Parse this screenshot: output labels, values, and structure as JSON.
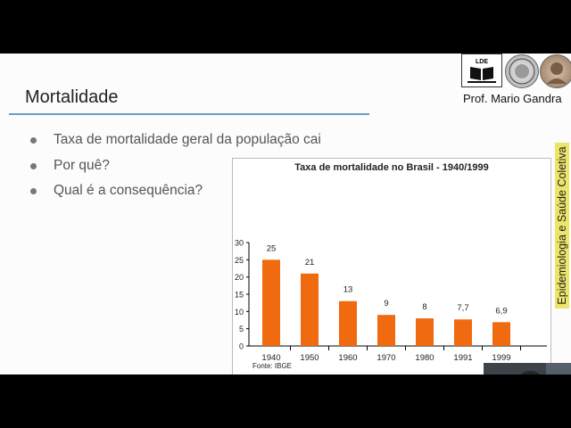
{
  "slide": {
    "title": "Mortalidade",
    "author": "Prof. Mario Gandra",
    "vertical_tag": "Epidemiologia e Saúde Coletiva",
    "logo_lde_text": "LDE",
    "bullets": [
      "Taxa de mortalidade geral da população cai",
      "Por quê?",
      "Qual é a consequência?"
    ]
  },
  "chart_data": {
    "type": "bar",
    "title": "Taxa de mortalidade no Brasil - 1940/1999",
    "categories": [
      "1940",
      "1950",
      "1960",
      "1970",
      "1980",
      "1991",
      "1999"
    ],
    "values": [
      25,
      21,
      13,
      9,
      8,
      7.7,
      6.9
    ],
    "value_labels": [
      "25",
      "21",
      "13",
      "9",
      "8",
      "7,7",
      "6,9"
    ],
    "ylim": [
      0,
      30
    ],
    "yticks": [
      0,
      5,
      10,
      15,
      20,
      25,
      30
    ],
    "bar_color": "#f06a10",
    "grid": false,
    "source": "Fonte: IBGE"
  },
  "colors": {
    "accent_rule": "#6b9ec4",
    "tag_background": "#ede56a"
  }
}
